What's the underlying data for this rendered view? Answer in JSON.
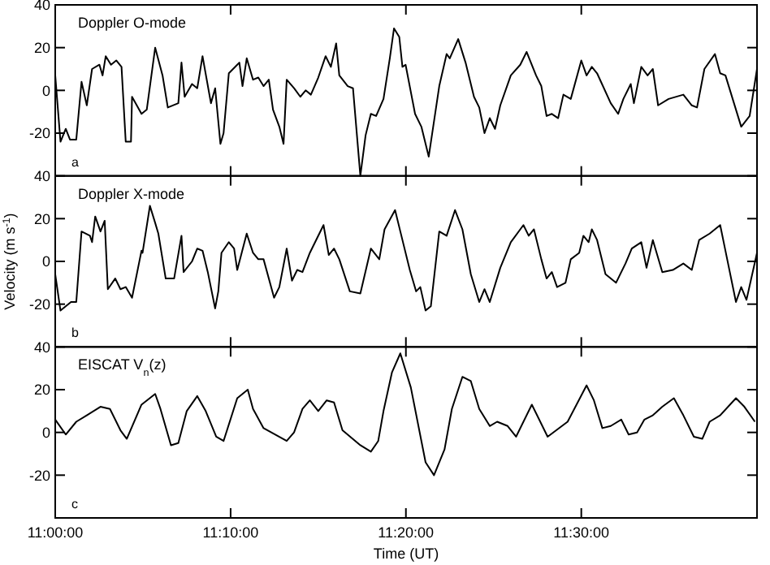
{
  "chart_data": [
    {
      "type": "line",
      "title": "Doppler O-mode",
      "annotations": [
        "a"
      ],
      "xlim": [
        11,
        11.667
      ],
      "xticks": [
        {
          "value": 11,
          "label": null
        },
        {
          "value": 11.1667,
          "label": null
        },
        {
          "value": 11.3333,
          "label": null
        },
        {
          "value": 11.5,
          "label": null
        }
      ],
      "ylim": [
        -40,
        40
      ],
      "yticks": [
        40,
        20,
        0,
        -20
      ],
      "tick_labels": "y",
      "series": [
        {
          "color": "#000000",
          "x": [
            11.0,
            11.005,
            11.01,
            11.014,
            11.02,
            11.025,
            11.03,
            11.035,
            11.042,
            11.045,
            11.048,
            11.053,
            11.058,
            11.063,
            11.067,
            11.072,
            11.073,
            11.082,
            11.087,
            11.095,
            11.102,
            11.107,
            11.117,
            11.12,
            11.123,
            11.13,
            11.135,
            11.14,
            11.148,
            11.152,
            11.157,
            11.16,
            11.165,
            11.173,
            11.175,
            11.178,
            11.182,
            11.188,
            11.193,
            11.198,
            11.203,
            11.207,
            11.213,
            11.217,
            11.22,
            11.227,
            11.233,
            11.238,
            11.243,
            11.25,
            11.257,
            11.262,
            11.267,
            11.27,
            11.278,
            11.283,
            11.29,
            11.295,
            11.3,
            11.305,
            11.312,
            11.318,
            11.322,
            11.327,
            11.33,
            11.333,
            11.342,
            11.348,
            11.355,
            11.365,
            11.372,
            11.375,
            11.383,
            11.39,
            11.398,
            11.403,
            11.408,
            11.413,
            11.418,
            11.423,
            11.433,
            11.442,
            11.448,
            11.457,
            11.462,
            11.467,
            11.472,
            11.478,
            11.483,
            11.49,
            11.5,
            11.505,
            11.51,
            11.515,
            11.528,
            11.535,
            11.54,
            11.547,
            11.55,
            11.557,
            11.563,
            11.568,
            11.573,
            11.583,
            11.597,
            11.605,
            11.61,
            11.617,
            11.627,
            11.632,
            11.637,
            11.652,
            11.66,
            11.667
          ],
          "values": [
            7,
            -24,
            -18,
            -23,
            -23,
            4,
            -7,
            10,
            12,
            7,
            16,
            12,
            14,
            11,
            -24,
            -24,
            -3,
            -11,
            -9,
            20,
            7,
            -8,
            -6,
            13,
            -3,
            3,
            1,
            16,
            -6,
            1,
            -25,
            -20,
            8,
            12,
            13,
            2,
            15,
            5,
            6,
            2,
            5,
            -9,
            -17,
            -25,
            5,
            1,
            -3,
            0,
            -2,
            6,
            16,
            11,
            22,
            7,
            2,
            1,
            -40,
            -21,
            -11,
            -12,
            -4,
            15,
            29,
            25,
            11,
            12,
            -11,
            -17,
            -31,
            2,
            17,
            15,
            24,
            13,
            -3,
            -8,
            -20,
            -13,
            -18,
            -7,
            7,
            12,
            18,
            7,
            2,
            -12,
            -11,
            -13,
            -2,
            -4,
            14,
            7,
            11,
            8,
            -6,
            -11,
            -4,
            3,
            -6,
            11,
            7,
            10,
            -7,
            -4,
            -2,
            -7,
            -8,
            10,
            17,
            8,
            7,
            -17,
            -12,
            10
          ]
        }
      ]
    },
    {
      "type": "line",
      "title": "Doppler X-mode",
      "ylabel": "Velocity (m s$^{-1}$)",
      "annotations": [
        "b"
      ],
      "xlim": [
        11,
        11.667
      ],
      "xticks": [
        {
          "value": 11,
          "label": null
        },
        {
          "value": 11.1667,
          "label": null
        },
        {
          "value": 11.3333,
          "label": null
        },
        {
          "value": 11.5,
          "label": null
        }
      ],
      "ylim": [
        -40,
        40
      ],
      "yticks": [
        40,
        20,
        0,
        -20
      ],
      "tick_labels": "y",
      "series": [
        {
          "color": "#000000",
          "x": [
            11.0,
            11.005,
            11.015,
            11.02,
            11.025,
            11.033,
            11.035,
            11.038,
            11.043,
            11.047,
            11.05,
            11.057,
            11.062,
            11.067,
            11.073,
            11.082,
            11.083,
            11.09,
            11.095,
            11.098,
            11.105,
            11.113,
            11.12,
            11.122,
            11.13,
            11.135,
            11.14,
            11.145,
            11.152,
            11.155,
            11.158,
            11.165,
            11.17,
            11.173,
            11.182,
            11.188,
            11.193,
            11.198,
            11.208,
            11.213,
            11.22,
            11.225,
            11.23,
            11.235,
            11.242,
            11.255,
            11.26,
            11.265,
            11.27,
            11.28,
            11.29,
            11.3,
            11.308,
            11.313,
            11.323,
            11.328,
            11.337,
            11.343,
            11.347,
            11.352,
            11.357,
            11.365,
            11.372,
            11.38,
            11.387,
            11.395,
            11.403,
            11.408,
            11.413,
            11.423,
            11.433,
            11.445,
            11.45,
            11.455,
            11.462,
            11.467,
            11.472,
            11.477,
            11.485,
            11.49,
            11.498,
            11.502,
            11.507,
            11.51,
            11.515,
            11.523,
            11.533,
            11.542,
            11.548,
            11.557,
            11.562,
            11.568,
            11.577,
            11.587,
            11.597,
            11.605,
            11.612,
            11.622,
            11.632,
            11.637,
            11.647,
            11.652,
            11.657,
            11.667
          ],
          "values": [
            -6,
            -23,
            -19,
            -19,
            14,
            12,
            9,
            21,
            14,
            19,
            -13,
            -8,
            -13,
            -12,
            -17,
            5,
            4,
            26,
            18,
            13,
            -8,
            -8,
            12,
            -5,
            0,
            6,
            5,
            -5,
            -22,
            -14,
            4,
            9,
            6,
            -4,
            13,
            4,
            1,
            1,
            -17,
            -12,
            6,
            -9,
            -4,
            -5,
            4,
            17,
            3,
            6,
            1,
            -14,
            -15,
            6,
            1,
            15,
            24,
            14,
            -4,
            -14,
            -12,
            -23,
            -21,
            14,
            12,
            24,
            15,
            -6,
            -19,
            -13,
            -19,
            -3,
            9,
            17,
            12,
            15,
            1,
            -8,
            -5,
            -12,
            -10,
            1,
            4,
            12,
            9,
            15,
            10,
            -6,
            -10,
            -1,
            6,
            9,
            -3,
            10,
            -5,
            -4,
            -1,
            -4,
            10,
            13,
            17,
            5,
            -19,
            -12,
            -18,
            4
          ]
        }
      ]
    },
    {
      "type": "line",
      "title": "EISCAT V$_{n}$(z)",
      "xlabel": "Time (UT)",
      "annotations": [
        "c"
      ],
      "xlim": [
        11,
        11.667
      ],
      "xticks": [
        {
          "value": 11,
          "label": "11:00:00"
        },
        {
          "value": 11.1667,
          "label": "11:10:00"
        },
        {
          "value": 11.3333,
          "label": "11:20:00"
        },
        {
          "value": 11.5,
          "label": "11:30:00"
        }
      ],
      "ylim": [
        -40,
        40
      ],
      "yticks": [
        40,
        20,
        0,
        -20
      ],
      "series": [
        {
          "color": "#000000",
          "x": [
            11.0,
            11.01,
            11.02,
            11.03,
            11.043,
            11.052,
            11.062,
            11.068,
            11.082,
            11.095,
            11.1,
            11.11,
            11.117,
            11.125,
            11.135,
            11.143,
            11.153,
            11.16,
            11.173,
            11.183,
            11.188,
            11.198,
            11.22,
            11.227,
            11.235,
            11.242,
            11.25,
            11.258,
            11.265,
            11.273,
            11.29,
            11.3,
            11.307,
            11.312,
            11.32,
            11.328,
            11.338,
            11.352,
            11.36,
            11.37,
            11.377,
            11.387,
            11.395,
            11.403,
            11.413,
            11.42,
            11.43,
            11.438,
            11.453,
            11.468,
            11.487,
            11.505,
            11.512,
            11.52,
            11.528,
            11.538,
            11.545,
            11.553,
            11.56,
            11.568,
            11.577,
            11.588,
            11.597,
            11.607,
            11.615,
            11.622,
            11.632,
            11.647,
            11.655,
            11.665
          ],
          "values": [
            6,
            -1,
            5,
            8,
            12,
            11,
            1,
            -3,
            13,
            18,
            11,
            -6,
            -5,
            10,
            17,
            10,
            -2,
            -4,
            16,
            20,
            11,
            2,
            -4,
            0,
            11,
            15,
            10,
            15,
            14,
            1,
            -6,
            -9,
            -4,
            10,
            28,
            37,
            21,
            -14,
            -20,
            -8,
            11,
            26,
            24,
            11,
            3,
            5,
            3,
            -2,
            13,
            -2,
            5,
            22,
            15,
            2,
            3,
            6,
            -1,
            0,
            6,
            8,
            12,
            16,
            8,
            -2,
            -3,
            5,
            8,
            16,
            12,
            5
          ]
        }
      ]
    }
  ]
}
